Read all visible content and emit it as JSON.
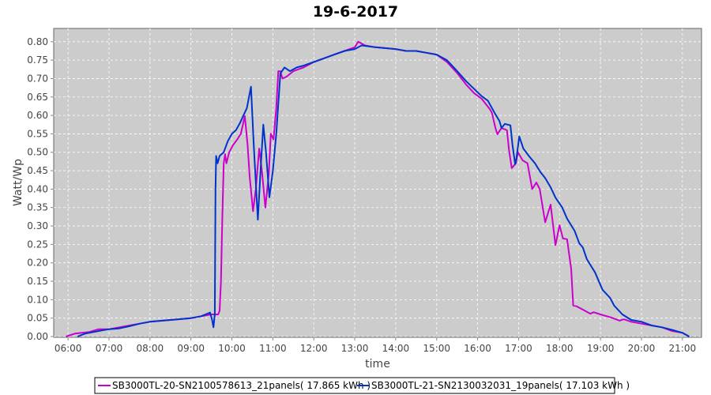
{
  "chart_data": {
    "type": "line",
    "title": "19-6-2017",
    "xlabel": "time",
    "ylabel": "Watt/Wp",
    "xlim": [
      "05:39",
      "21:28"
    ],
    "ylim": [
      0,
      0.836
    ],
    "grid": true,
    "legend_position": "bottom",
    "background": "#cccccc",
    "x_ticks": [
      "06:00",
      "07:00",
      "08:00",
      "09:00",
      "10:00",
      "11:00",
      "12:00",
      "13:00",
      "14:00",
      "15:00",
      "16:00",
      "17:00",
      "18:00",
      "19:00",
      "20:00",
      "21:00"
    ],
    "y_ticks": [
      "0.00",
      "0.05",
      "0.10",
      "0.15",
      "0.20",
      "0.25",
      "0.30",
      "0.35",
      "0.40",
      "0.45",
      "0.50",
      "0.55",
      "0.60",
      "0.65",
      "0.70",
      "0.75",
      "0.80"
    ],
    "series": [
      {
        "name": "SB3000TL-20-SN2100578613_21panels( 17.865 kWh )",
        "color": "#cc00cc",
        "points": [
          [
            "05:57",
            0.0
          ],
          [
            "06:10",
            0.008
          ],
          [
            "06:30",
            0.012
          ],
          [
            "06:45",
            0.02
          ],
          [
            "07:00",
            0.02
          ],
          [
            "07:15",
            0.025
          ],
          [
            "07:30",
            0.03
          ],
          [
            "07:45",
            0.035
          ],
          [
            "08:00",
            0.04
          ],
          [
            "08:30",
            0.045
          ],
          [
            "09:00",
            0.05
          ],
          [
            "09:15",
            0.055
          ],
          [
            "09:30",
            0.06
          ],
          [
            "09:40",
            0.06
          ],
          [
            "09:42",
            0.07
          ],
          [
            "09:44",
            0.15
          ],
          [
            "09:46",
            0.32
          ],
          [
            "09:48",
            0.47
          ],
          [
            "09:50",
            0.495
          ],
          [
            "09:52",
            0.47
          ],
          [
            "09:56",
            0.5
          ],
          [
            "10:02",
            0.52
          ],
          [
            "10:08",
            0.535
          ],
          [
            "10:13",
            0.55
          ],
          [
            "10:19",
            0.598
          ],
          [
            "10:23",
            0.52
          ],
          [
            "10:26",
            0.435
          ],
          [
            "10:31",
            0.34
          ],
          [
            "10:35",
            0.4
          ],
          [
            "10:40",
            0.51
          ],
          [
            "10:44",
            0.45
          ],
          [
            "10:49",
            0.35
          ],
          [
            "10:54",
            0.44
          ],
          [
            "10:57",
            0.55
          ],
          [
            "11:01",
            0.535
          ],
          [
            "11:05",
            0.62
          ],
          [
            "11:08",
            0.72
          ],
          [
            "11:11",
            0.72
          ],
          [
            "11:14",
            0.7
          ],
          [
            "11:20",
            0.705
          ],
          [
            "11:30",
            0.72
          ],
          [
            "11:45",
            0.73
          ],
          [
            "12:00",
            0.745
          ],
          [
            "12:15",
            0.755
          ],
          [
            "12:30",
            0.765
          ],
          [
            "12:45",
            0.775
          ],
          [
            "13:00",
            0.785
          ],
          [
            "13:05",
            0.8
          ],
          [
            "13:15",
            0.79
          ],
          [
            "13:30",
            0.785
          ],
          [
            "14:00",
            0.78
          ],
          [
            "14:15",
            0.775
          ],
          [
            "14:30",
            0.775
          ],
          [
            "14:45",
            0.77
          ],
          [
            "15:00",
            0.765
          ],
          [
            "15:15",
            0.745
          ],
          [
            "15:30",
            0.715
          ],
          [
            "15:43",
            0.684
          ],
          [
            "15:55",
            0.66
          ],
          [
            "16:06",
            0.645
          ],
          [
            "16:18",
            0.617
          ],
          [
            "16:21",
            0.607
          ],
          [
            "16:26",
            0.566
          ],
          [
            "16:29",
            0.549
          ],
          [
            "16:35",
            0.566
          ],
          [
            "16:43",
            0.56
          ],
          [
            "16:46",
            0.506
          ],
          [
            "16:50",
            0.457
          ],
          [
            "16:56",
            0.47
          ],
          [
            "16:59",
            0.5
          ],
          [
            "17:06",
            0.478
          ],
          [
            "17:13",
            0.47
          ],
          [
            "17:20",
            0.4
          ],
          [
            "17:26",
            0.418
          ],
          [
            "17:31",
            0.4
          ],
          [
            "17:39",
            0.31
          ],
          [
            "17:47",
            0.358
          ],
          [
            "17:54",
            0.248
          ],
          [
            "18:00",
            0.302
          ],
          [
            "18:05",
            0.266
          ],
          [
            "18:11",
            0.264
          ],
          [
            "18:17",
            0.184
          ],
          [
            "18:20",
            0.084
          ],
          [
            "18:25",
            0.082
          ],
          [
            "18:34",
            0.073
          ],
          [
            "18:45",
            0.062
          ],
          [
            "18:50",
            0.066
          ],
          [
            "19:00",
            0.06
          ],
          [
            "19:15",
            0.052
          ],
          [
            "19:28",
            0.043
          ],
          [
            "19:34",
            0.047
          ],
          [
            "19:45",
            0.04
          ],
          [
            "20:00",
            0.035
          ],
          [
            "20:15",
            0.03
          ],
          [
            "20:30",
            0.025
          ],
          [
            "20:45",
            0.015
          ],
          [
            "21:00",
            0.01
          ],
          [
            "21:10",
            0.0
          ]
        ]
      },
      {
        "name": "SB3000TL-21-SN2130032031_19panels( 17.103 kWh )",
        "color": "#0033cc",
        "points": [
          [
            "06:14",
            0.0
          ],
          [
            "06:25",
            0.008
          ],
          [
            "06:45",
            0.015
          ],
          [
            "07:00",
            0.02
          ],
          [
            "07:15",
            0.022
          ],
          [
            "07:30",
            0.028
          ],
          [
            "07:45",
            0.035
          ],
          [
            "08:00",
            0.04
          ],
          [
            "08:30",
            0.045
          ],
          [
            "09:00",
            0.05
          ],
          [
            "09:15",
            0.055
          ],
          [
            "09:28",
            0.065
          ],
          [
            "09:31",
            0.045
          ],
          [
            "09:33",
            0.025
          ],
          [
            "09:35",
            0.06
          ],
          [
            "09:36",
            0.4
          ],
          [
            "09:37",
            0.49
          ],
          [
            "09:39",
            0.47
          ],
          [
            "09:42",
            0.49
          ],
          [
            "09:48",
            0.5
          ],
          [
            "09:54",
            0.53
          ],
          [
            "10:00",
            0.55
          ],
          [
            "10:06",
            0.56
          ],
          [
            "10:12",
            0.58
          ],
          [
            "10:17",
            0.6
          ],
          [
            "10:22",
            0.62
          ],
          [
            "10:28",
            0.678
          ],
          [
            "10:32",
            0.52
          ],
          [
            "10:38",
            0.317
          ],
          [
            "10:42",
            0.45
          ],
          [
            "10:46",
            0.575
          ],
          [
            "10:50",
            0.5
          ],
          [
            "10:55",
            0.378
          ],
          [
            "11:00",
            0.45
          ],
          [
            "11:05",
            0.55
          ],
          [
            "11:11",
            0.714
          ],
          [
            "11:17",
            0.73
          ],
          [
            "11:25",
            0.72
          ],
          [
            "11:35",
            0.73
          ],
          [
            "11:45",
            0.735
          ],
          [
            "12:00",
            0.745
          ],
          [
            "12:15",
            0.755
          ],
          [
            "12:30",
            0.765
          ],
          [
            "12:45",
            0.775
          ],
          [
            "13:00",
            0.78
          ],
          [
            "13:10",
            0.79
          ],
          [
            "13:30",
            0.785
          ],
          [
            "14:00",
            0.78
          ],
          [
            "14:15",
            0.775
          ],
          [
            "14:30",
            0.775
          ],
          [
            "14:45",
            0.77
          ],
          [
            "15:00",
            0.765
          ],
          [
            "15:15",
            0.75
          ],
          [
            "15:30",
            0.72
          ],
          [
            "15:43",
            0.693
          ],
          [
            "16:06",
            0.652
          ],
          [
            "16:15",
            0.64
          ],
          [
            "16:26",
            0.603
          ],
          [
            "16:32",
            0.585
          ],
          [
            "16:35",
            0.566
          ],
          [
            "16:40",
            0.577
          ],
          [
            "16:48",
            0.573
          ],
          [
            "16:51",
            0.52
          ],
          [
            "16:55",
            0.468
          ],
          [
            "16:57",
            0.485
          ],
          [
            "17:01",
            0.543
          ],
          [
            "17:07",
            0.51
          ],
          [
            "17:15",
            0.49
          ],
          [
            "17:24",
            0.47
          ],
          [
            "17:32",
            0.446
          ],
          [
            "17:39",
            0.43
          ],
          [
            "17:47",
            0.405
          ],
          [
            "17:54",
            0.377
          ],
          [
            "18:04",
            0.35
          ],
          [
            "18:11",
            0.32
          ],
          [
            "18:22",
            0.287
          ],
          [
            "18:29",
            0.253
          ],
          [
            "18:34",
            0.242
          ],
          [
            "18:40",
            0.21
          ],
          [
            "18:52",
            0.174
          ],
          [
            "19:03",
            0.127
          ],
          [
            "19:14",
            0.105
          ],
          [
            "19:20",
            0.084
          ],
          [
            "19:32",
            0.06
          ],
          [
            "19:45",
            0.045
          ],
          [
            "20:00",
            0.04
          ],
          [
            "20:15",
            0.03
          ],
          [
            "20:30",
            0.025
          ],
          [
            "20:45",
            0.018
          ],
          [
            "21:00",
            0.01
          ],
          [
            "21:10",
            0.0
          ]
        ]
      }
    ]
  }
}
